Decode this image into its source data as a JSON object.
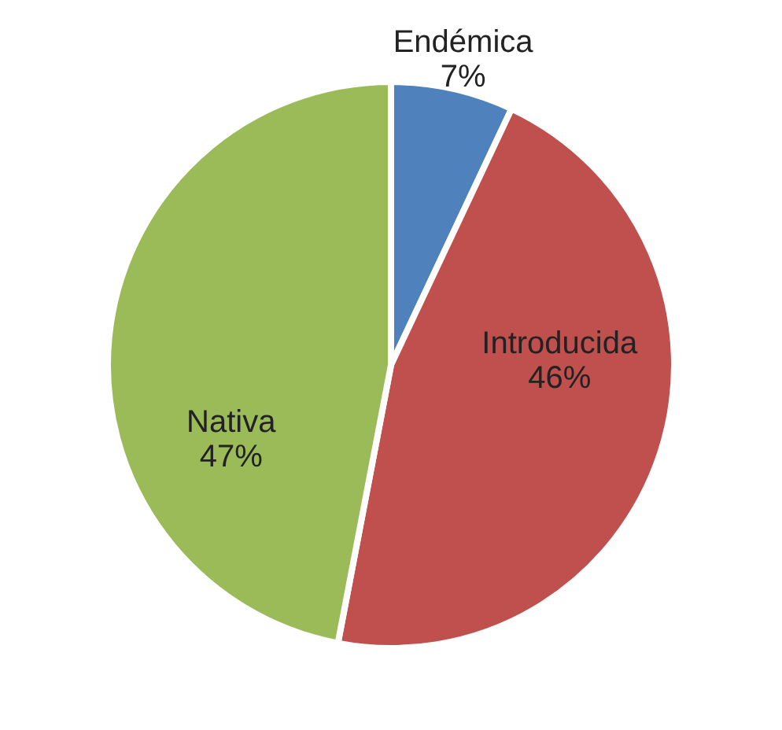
{
  "chart_data": {
    "type": "pie",
    "categories": [
      "Endémica",
      "Introducida",
      "Nativa"
    ],
    "values": [
      7,
      46,
      47
    ],
    "colors": [
      "#4f81bd",
      "#c0504d",
      "#9bbb59"
    ],
    "value_labels": [
      "7%",
      "46%",
      "47%"
    ],
    "legend": false
  }
}
